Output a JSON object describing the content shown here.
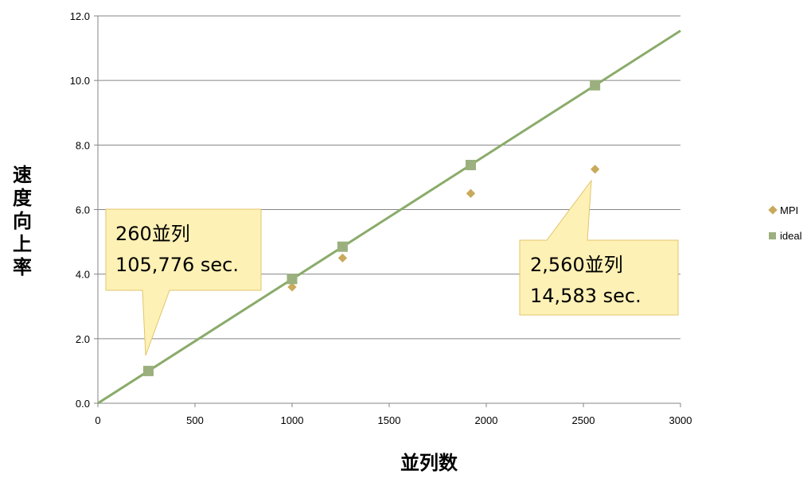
{
  "chart_data": {
    "type": "scatter",
    "xlabel": "並列数",
    "ylabel": "速度向上率",
    "xlim": [
      0,
      3000
    ],
    "ylim": [
      0,
      12
    ],
    "x_ticks": [
      "0",
      "500",
      "1000",
      "1500",
      "2000",
      "2500",
      "3000"
    ],
    "y_ticks": [
      "0.0",
      "2.0",
      "4.0",
      "6.0",
      "8.0",
      "10.0",
      "12.0"
    ],
    "grid": "horizontal",
    "legend_position": "right",
    "series": [
      {
        "name": "MPI",
        "marker": "diamond",
        "color": "#c9a95a",
        "points": [
          [
            260,
            1.0
          ],
          [
            1000,
            3.6
          ],
          [
            1260,
            4.5
          ],
          [
            1920,
            6.5
          ],
          [
            2560,
            7.25
          ]
        ]
      },
      {
        "name": "ideal",
        "marker": "square",
        "color": "#9bb07e",
        "line_color": "#8aab6a",
        "points": [
          [
            260,
            1.0
          ],
          [
            1000,
            3.85
          ],
          [
            1260,
            4.85
          ],
          [
            1920,
            7.38
          ],
          [
            2560,
            9.85
          ]
        ]
      }
    ],
    "annotations": [
      {
        "lines": [
          "260並列",
          "105,776 sec."
        ]
      },
      {
        "lines": [
          "2,560並列",
          "14,583 sec."
        ]
      }
    ]
  }
}
